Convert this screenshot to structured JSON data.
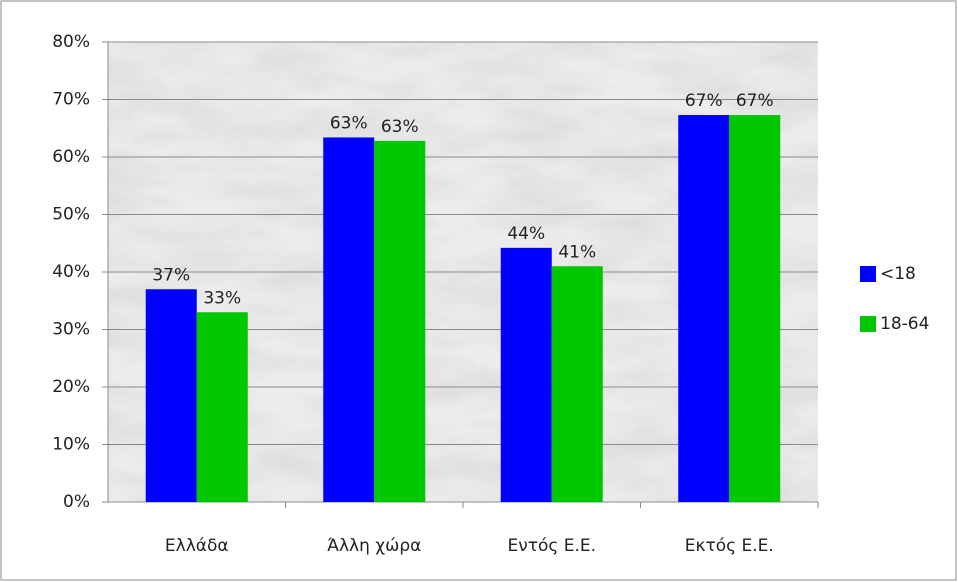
{
  "chart_data": {
    "type": "bar",
    "categories": [
      "Ελλάδα",
      "Άλλη χώρα",
      "Εντός Ε.Ε.",
      "Εκτός Ε.Ε."
    ],
    "series": [
      {
        "name": "<18",
        "color": "#0000ff",
        "values": [
          37,
          63.4,
          44.2,
          67.3
        ],
        "value_labels": [
          "37%",
          "63%",
          "44%",
          "67%"
        ]
      },
      {
        "name": "18-64",
        "color": "#00c800",
        "values": [
          33,
          62.8,
          41,
          67.3
        ],
        "value_labels": [
          "33%",
          "63%",
          "41%",
          "67%"
        ]
      }
    ],
    "ylim": [
      0,
      80
    ],
    "yticks": [
      {
        "value": 0,
        "label": "0%"
      },
      {
        "value": 10,
        "label": "10%"
      },
      {
        "value": 20,
        "label": "20%"
      },
      {
        "value": 30,
        "label": "30%"
      },
      {
        "value": 40,
        "label": "40%"
      },
      {
        "value": 50,
        "label": "50%"
      },
      {
        "value": 60,
        "label": "60%"
      },
      {
        "value": 70,
        "label": "70%"
      },
      {
        "value": 80,
        "label": "80%"
      }
    ],
    "grid": true,
    "legend": "right"
  }
}
